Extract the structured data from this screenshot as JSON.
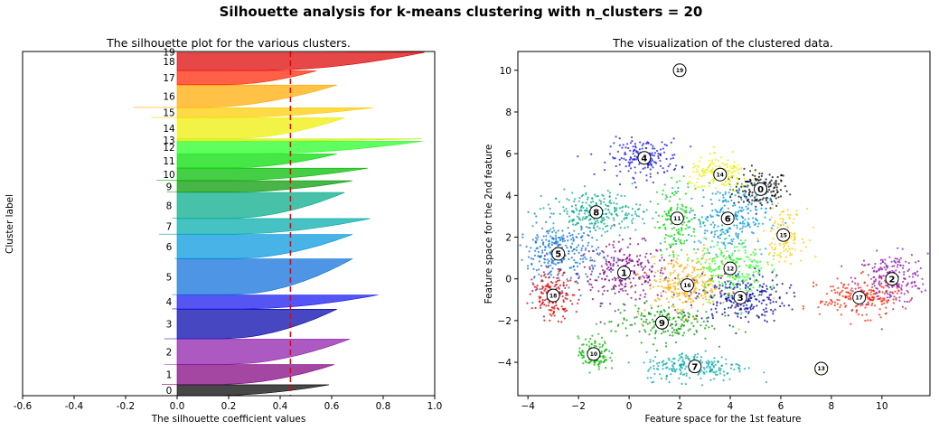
{
  "title": "Silhouette analysis for k-means clustering with n_clusters = 20",
  "chart_data": [
    {
      "type": "area",
      "title": "The silhouette plot for the various clusters.",
      "xlabel": "The silhouette coefficient values",
      "ylabel": "Cluster label",
      "xlim": [
        -0.6,
        1.0
      ],
      "ylim": [
        0,
        20500
      ],
      "xticks": [
        "-0.6",
        "-0.4",
        "-0.2",
        "0.0",
        "0.2",
        "0.4",
        "0.6",
        "0.8",
        "1.0"
      ],
      "average_silhouette": 0.44,
      "grid": false,
      "clusters": [
        {
          "label": "0",
          "y0": 0,
          "y1": 650,
          "max": 0.59,
          "min": -0.1,
          "color": "#000000"
        },
        {
          "label": "1",
          "y0": 670,
          "y1": 1850,
          "max": 0.61,
          "min": -0.06,
          "color": "#800080"
        },
        {
          "label": "2",
          "y0": 1870,
          "y1": 3370,
          "max": 0.67,
          "min": -0.05,
          "color": "#8c1aab"
        },
        {
          "label": "3",
          "y0": 3390,
          "y1": 5150,
          "max": 0.62,
          "min": -0.05,
          "color": "#0000aa"
        },
        {
          "label": "4",
          "y0": 5170,
          "y1": 6000,
          "max": 0.78,
          "min": -0.02,
          "color": "#1414ee"
        },
        {
          "label": "5",
          "y0": 6020,
          "y1": 8150,
          "max": 0.68,
          "min": -0.02,
          "color": "#0a6edb"
        },
        {
          "label": "6",
          "y0": 8170,
          "y1": 9600,
          "max": 0.68,
          "min": -0.01,
          "color": "#0095dd"
        },
        {
          "label": "7",
          "y0": 9620,
          "y1": 10550,
          "max": 0.75,
          "min": -0.07,
          "color": "#00aaaa"
        },
        {
          "label": "8",
          "y0": 10570,
          "y1": 12100,
          "max": 0.65,
          "min": -0.02,
          "color": "#00aa88"
        },
        {
          "label": "9",
          "y0": 12120,
          "y1": 12800,
          "max": 0.68,
          "min": -0.04,
          "color": "#009900"
        },
        {
          "label": "10",
          "y0": 12820,
          "y1": 13550,
          "max": 0.74,
          "min": -0.08,
          "color": "#00bb00"
        },
        {
          "label": "11",
          "y0": 13570,
          "y1": 14400,
          "max": 0.62,
          "min": 0.0,
          "color": "#00dd00"
        },
        {
          "label": "12",
          "y0": 14420,
          "y1": 15150,
          "max": 0.95,
          "min": 0.0,
          "color": "#22ff22"
        },
        {
          "label": "13",
          "y0": 15170,
          "y1": 15300,
          "max": 0.95,
          "min": 0.0,
          "color": "#ccee00"
        },
        {
          "label": "14",
          "y0": 15320,
          "y1": 16550,
          "max": 0.65,
          "min": 0.0,
          "color": "#eeee00"
        },
        {
          "label": "15",
          "y0": 16570,
          "y1": 17150,
          "max": 0.76,
          "min": -0.1,
          "color": "#ffcc00"
        },
        {
          "label": "16",
          "y0": 17170,
          "y1": 18500,
          "max": 0.62,
          "min": -0.17,
          "color": "#ffaa00"
        },
        {
          "label": "17",
          "y0": 18520,
          "y1": 19350,
          "max": 0.54,
          "min": 0.0,
          "color": "#ff2200"
        },
        {
          "label": "18",
          "y0": 19370,
          "y1": 20450,
          "max": 0.96,
          "min": 0.0,
          "color": "#dd0000"
        },
        {
          "label": "19",
          "y0": 20460,
          "y1": 20500,
          "max": 0.98,
          "min": 0.0,
          "color": "#cccccc"
        }
      ]
    },
    {
      "type": "scatter",
      "title": "The visualization of the clustered data.",
      "xlabel": "Feature space for the 1st feature",
      "ylabel": "Feature space for the 2nd feature",
      "xlim": [
        -4.4,
        11.9
      ],
      "ylim": [
        -5.6,
        10.9
      ],
      "xticks": [
        "-4",
        "-2",
        "0",
        "2",
        "4",
        "6",
        "8",
        "10"
      ],
      "yticks": [
        "-4",
        "-2",
        "0",
        "2",
        "4",
        "6",
        "8",
        "10"
      ],
      "grid": false,
      "centers": [
        {
          "label": "0",
          "x": 5.2,
          "y": 4.3,
          "color": "#000000"
        },
        {
          "label": "1",
          "x": -0.2,
          "y": 0.3,
          "color": "#800080"
        },
        {
          "label": "2",
          "x": 10.4,
          "y": 0.0,
          "color": "#8c1aab"
        },
        {
          "label": "3",
          "x": 4.4,
          "y": -0.9,
          "color": "#0000aa"
        },
        {
          "label": "4",
          "x": 0.6,
          "y": 5.8,
          "color": "#1414ee"
        },
        {
          "label": "5",
          "x": -2.8,
          "y": 1.2,
          "color": "#0a6edb"
        },
        {
          "label": "6",
          "x": 3.9,
          "y": 2.9,
          "color": "#0095dd"
        },
        {
          "label": "7",
          "x": 2.6,
          "y": -4.2,
          "color": "#00aaaa"
        },
        {
          "label": "8",
          "x": -1.3,
          "y": 3.2,
          "color": "#00aa88"
        },
        {
          "label": "9",
          "x": 1.3,
          "y": -2.1,
          "color": "#009900"
        },
        {
          "label": "10",
          "x": -1.4,
          "y": -3.6,
          "color": "#00bb00"
        },
        {
          "label": "11",
          "x": 1.9,
          "y": 2.9,
          "color": "#00dd00"
        },
        {
          "label": "12",
          "x": 4.0,
          "y": 0.5,
          "color": "#22ff22"
        },
        {
          "label": "13",
          "x": 7.6,
          "y": -4.3,
          "color": "#ccee00"
        },
        {
          "label": "14",
          "x": 3.6,
          "y": 5.0,
          "color": "#eeee00"
        },
        {
          "label": "15",
          "x": 6.1,
          "y": 2.1,
          "color": "#ffcc00"
        },
        {
          "label": "16",
          "x": 2.3,
          "y": -0.3,
          "color": "#ffaa00"
        },
        {
          "label": "17",
          "x": 9.1,
          "y": -0.9,
          "color": "#ff2200"
        },
        {
          "label": "18",
          "x": -3.0,
          "y": -0.8,
          "color": "#dd0000"
        },
        {
          "label": "19",
          "x": 2.0,
          "y": 10.0,
          "color": "#cccccc"
        }
      ]
    }
  ]
}
